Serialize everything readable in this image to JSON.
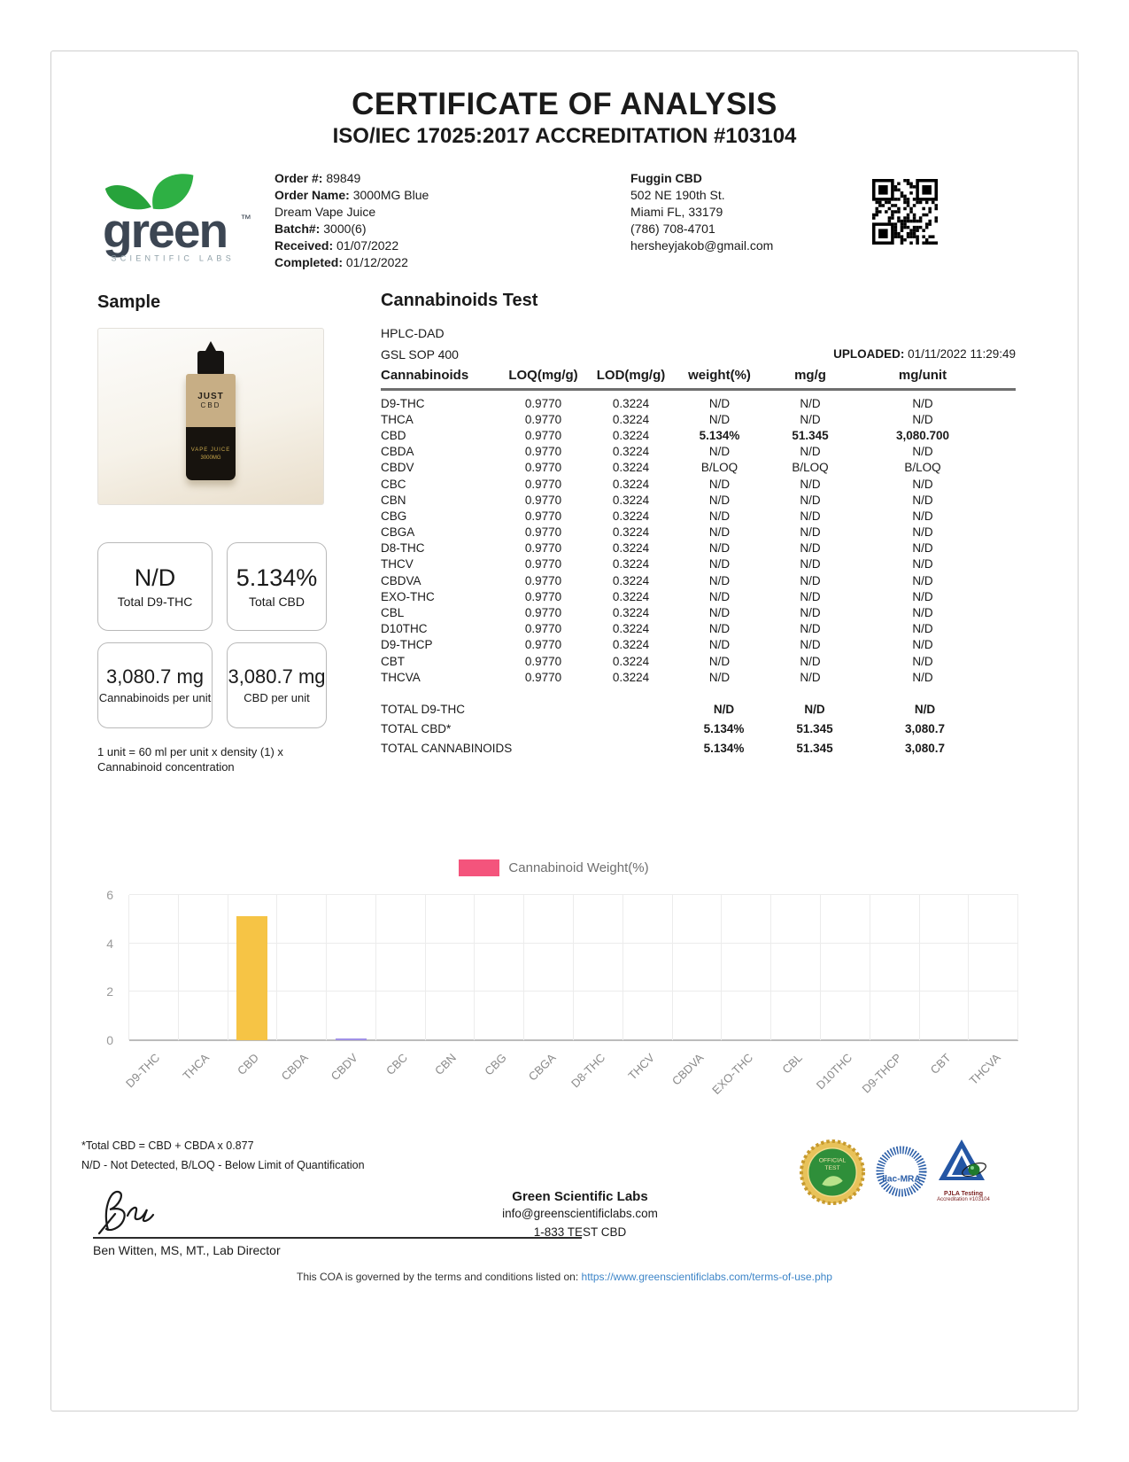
{
  "document": {
    "title": "CERTIFICATE OF ANALYSIS",
    "subtitle": "ISO/IEC 17025:2017 ACCREDITATION #103104"
  },
  "lab_logo": {
    "wordmark": "green",
    "trademark": "™",
    "tagline": "SCIENTIFIC LABS"
  },
  "order": {
    "order_number_label": "Order #:",
    "order_number": "89849",
    "order_name_label": "Order Name:",
    "order_name": "3000MG Blue Dream Vape Juice",
    "batch_label": "Batch#:",
    "batch": "3000(6)",
    "received_label": "Received:",
    "received": "01/07/2022",
    "completed_label": "Completed:",
    "completed": "01/12/2022"
  },
  "client": {
    "name": "Fuggin CBD",
    "address_line1": "502 NE 190th St.",
    "address_line2": "Miami FL, 33179",
    "phone": "(786) 708-4701",
    "email": "hersheyjakob@gmail.com"
  },
  "sample": {
    "heading": "Sample",
    "bottle": {
      "label_line1": "JUST",
      "label_line2": "CBD",
      "label_line3": "VAPE JUICE",
      "label_line4": "3000MG"
    },
    "summary_boxes": [
      {
        "value": "N/D",
        "label": "Total D9-THC"
      },
      {
        "value": "5.134%",
        "label": "Total CBD"
      },
      {
        "value": "3,080.7 mg",
        "label": "Cannabinoids per unit"
      },
      {
        "value": "3,080.7 mg",
        "label": "CBD per unit"
      }
    ],
    "unit_note": "1 unit = 60 ml per unit x density (1) x Cannabinoid concentration"
  },
  "test": {
    "heading": "Cannabinoids Test",
    "method": "HPLC-DAD",
    "sop": "GSL SOP 400",
    "uploaded_label": "UPLOADED:",
    "uploaded": "01/11/2022 11:29:49",
    "table": {
      "headers": [
        "Cannabinoids",
        "LOQ(mg/g)",
        "LOD(mg/g)",
        "weight(%)",
        "mg/g",
        "mg/unit"
      ],
      "rows": [
        {
          "name": "D9-THC",
          "loq": "0.9770",
          "lod": "0.3224",
          "weight": "N/D",
          "mg_g": "N/D",
          "mg_unit": "N/D",
          "emphasis": false
        },
        {
          "name": "THCA",
          "loq": "0.9770",
          "lod": "0.3224",
          "weight": "N/D",
          "mg_g": "N/D",
          "mg_unit": "N/D",
          "emphasis": false
        },
        {
          "name": "CBD",
          "loq": "0.9770",
          "lod": "0.3224",
          "weight": "5.134%",
          "mg_g": "51.345",
          "mg_unit": "3,080.700",
          "emphasis": true
        },
        {
          "name": "CBDA",
          "loq": "0.9770",
          "lod": "0.3224",
          "weight": "N/D",
          "mg_g": "N/D",
          "mg_unit": "N/D",
          "emphasis": false
        },
        {
          "name": "CBDV",
          "loq": "0.9770",
          "lod": "0.3224",
          "weight": "B/LOQ",
          "mg_g": "B/LOQ",
          "mg_unit": "B/LOQ",
          "emphasis": false
        },
        {
          "name": "CBC",
          "loq": "0.9770",
          "lod": "0.3224",
          "weight": "N/D",
          "mg_g": "N/D",
          "mg_unit": "N/D",
          "emphasis": false
        },
        {
          "name": "CBN",
          "loq": "0.9770",
          "lod": "0.3224",
          "weight": "N/D",
          "mg_g": "N/D",
          "mg_unit": "N/D",
          "emphasis": false
        },
        {
          "name": "CBG",
          "loq": "0.9770",
          "lod": "0.3224",
          "weight": "N/D",
          "mg_g": "N/D",
          "mg_unit": "N/D",
          "emphasis": false
        },
        {
          "name": "CBGA",
          "loq": "0.9770",
          "lod": "0.3224",
          "weight": "N/D",
          "mg_g": "N/D",
          "mg_unit": "N/D",
          "emphasis": false
        },
        {
          "name": "D8-THC",
          "loq": "0.9770",
          "lod": "0.3224",
          "weight": "N/D",
          "mg_g": "N/D",
          "mg_unit": "N/D",
          "emphasis": false
        },
        {
          "name": "THCV",
          "loq": "0.9770",
          "lod": "0.3224",
          "weight": "N/D",
          "mg_g": "N/D",
          "mg_unit": "N/D",
          "emphasis": false
        },
        {
          "name": "CBDVA",
          "loq": "0.9770",
          "lod": "0.3224",
          "weight": "N/D",
          "mg_g": "N/D",
          "mg_unit": "N/D",
          "emphasis": false
        },
        {
          "name": "EXO-THC",
          "loq": "0.9770",
          "lod": "0.3224",
          "weight": "N/D",
          "mg_g": "N/D",
          "mg_unit": "N/D",
          "emphasis": false
        },
        {
          "name": "CBL",
          "loq": "0.9770",
          "lod": "0.3224",
          "weight": "N/D",
          "mg_g": "N/D",
          "mg_unit": "N/D",
          "emphasis": false
        },
        {
          "name": "D10THC",
          "loq": "0.9770",
          "lod": "0.3224",
          "weight": "N/D",
          "mg_g": "N/D",
          "mg_unit": "N/D",
          "emphasis": false
        },
        {
          "name": "D9-THCP",
          "loq": "0.9770",
          "lod": "0.3224",
          "weight": "N/D",
          "mg_g": "N/D",
          "mg_unit": "N/D",
          "emphasis": false
        },
        {
          "name": "CBT",
          "loq": "0.9770",
          "lod": "0.3224",
          "weight": "N/D",
          "mg_g": "N/D",
          "mg_unit": "N/D",
          "emphasis": false
        },
        {
          "name": "THCVA",
          "loq": "0.9770",
          "lod": "0.3224",
          "weight": "N/D",
          "mg_g": "N/D",
          "mg_unit": "N/D",
          "emphasis": false
        }
      ],
      "totals": [
        {
          "label": "TOTAL D9-THC",
          "weight": "N/D",
          "mg_g": "N/D",
          "mg_unit": "N/D"
        },
        {
          "label": "TOTAL CBD*",
          "weight": "5.134%",
          "mg_g": "51.345",
          "mg_unit": "3,080.7"
        },
        {
          "label": "TOTAL CANNABINOIDS",
          "weight": "5.134%",
          "mg_g": "51.345",
          "mg_unit": "3,080.7"
        }
      ]
    }
  },
  "chart_data": {
    "type": "bar",
    "title": "",
    "legend": [
      {
        "label": "Cannabinoid Weight(%)",
        "color": "#F4547C"
      }
    ],
    "legend_position": "top-center",
    "categories": [
      "D9-THC",
      "THCA",
      "CBD",
      "CBDA",
      "CBDV",
      "CBC",
      "CBN",
      "CBG",
      "CBGA",
      "D8-THC",
      "THCV",
      "CBDVA",
      "EXO-THC",
      "CBL",
      "D10THC",
      "D9-THCP",
      "CBT",
      "THCVA"
    ],
    "values": [
      0,
      0,
      5.134,
      0,
      0.08,
      0,
      0,
      0,
      0,
      0,
      0,
      0,
      0,
      0,
      0,
      0,
      0,
      0
    ],
    "bar_colors": {
      "CBD": "#F6C445",
      "CBDV": "#A091E6"
    },
    "xlabel": "",
    "ylabel": "",
    "ylim": [
      0,
      6
    ],
    "yticks": [
      0,
      2,
      4,
      6
    ],
    "grid": true
  },
  "footnotes": [
    "*Total CBD = CBD + CBDA x 0.877",
    "N/D - Not Detected, B/LOQ - Below Limit of Quantification"
  ],
  "footer": {
    "signatory": "Ben Witten, MS, MT., Lab Director",
    "lab_name": "Green Scientific Labs",
    "lab_email": "info@greenscientificlabs.com",
    "lab_phone": "1-833 TEST CBD",
    "terms_text": "This COA is governed by the terms and conditions listed on: ",
    "terms_url": "https://www.greenscientificlabs.com/terms-of-use.php",
    "accreditations": {
      "seal_text_line1": "OFFICIAL",
      "seal_text_line2": "TEST",
      "ilac_text": "ilac-MRA",
      "pjla_caption_line1": "PJLA Testing",
      "pjla_caption_line2": "Accreditation #103104"
    }
  }
}
